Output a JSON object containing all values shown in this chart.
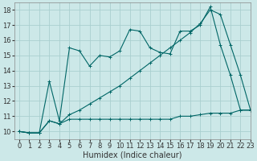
{
  "xlabel": "Humidex (Indice chaleur)",
  "background_color": "#cce8e8",
  "grid_color": "#aacfcf",
  "line_color": "#006666",
  "xlim": [
    -0.5,
    23
  ],
  "ylim": [
    9.5,
    18.5
  ],
  "xticks": [
    0,
    1,
    2,
    3,
    4,
    5,
    6,
    7,
    8,
    9,
    10,
    11,
    12,
    13,
    14,
    15,
    16,
    17,
    18,
    19,
    20,
    21,
    22,
    23
  ],
  "yticks": [
    10,
    11,
    12,
    13,
    14,
    15,
    16,
    17,
    18
  ],
  "series1_y": [
    10.0,
    9.9,
    9.9,
    10.7,
    10.5,
    10.8,
    10.8,
    10.8,
    10.8,
    10.8,
    10.8,
    10.8,
    10.8,
    10.8,
    10.8,
    10.8,
    11.0,
    11.0,
    11.1,
    11.2,
    11.2,
    11.2,
    11.4,
    11.4
  ],
  "series2_y": [
    10.0,
    9.9,
    9.9,
    10.7,
    10.5,
    11.1,
    11.4,
    11.8,
    12.2,
    12.6,
    13.0,
    13.5,
    14.0,
    14.5,
    15.0,
    15.5,
    16.0,
    16.5,
    17.1,
    18.0,
    17.7,
    15.7,
    13.7,
    11.4
  ],
  "series3_y": [
    10.0,
    9.9,
    9.9,
    13.3,
    10.7,
    15.5,
    15.3,
    14.3,
    15.0,
    14.9,
    15.3,
    16.7,
    16.6,
    15.5,
    15.2,
    15.1,
    16.6,
    16.6,
    17.0,
    18.2,
    15.7,
    13.7,
    11.4,
    11.4
  ],
  "xlabel_fontsize": 7,
  "tick_labelsize": 6
}
